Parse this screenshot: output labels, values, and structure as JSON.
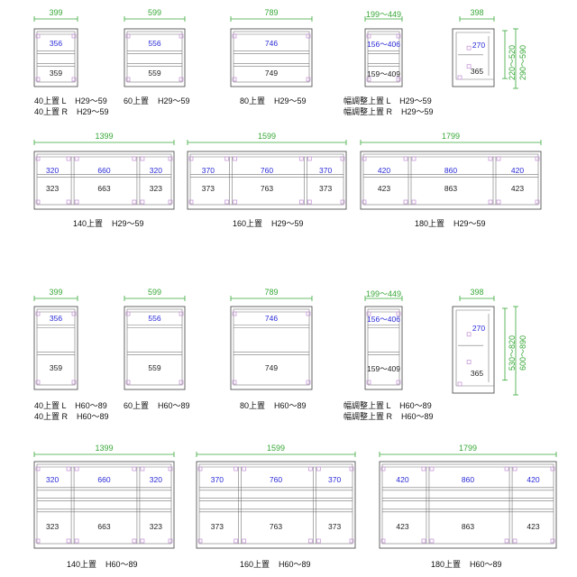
{
  "rows": [
    {
      "row_id": "upper-h29",
      "units": [
        {
          "width": "399",
          "top_value": "356",
          "bottom_value": "359",
          "caption_lines": [
            "40上置 L    H29〜59",
            "40上置 R    H29〜59"
          ]
        },
        {
          "width": "599",
          "top_value": "556",
          "bottom_value": "559",
          "caption_lines": [
            "60上置    H29〜59"
          ]
        },
        {
          "width": "789",
          "top_value": "746",
          "bottom_value": "749",
          "caption_lines": [
            "80上置    H29〜59"
          ]
        },
        {
          "width": "199〜449",
          "top_value": "156〜406",
          "bottom_value": "159〜409",
          "caption_lines": [
            "幅調整上置 L    H29〜59",
            "幅調整上置 R    H29〜59"
          ]
        },
        {
          "width": "398",
          "top_value": "270",
          "bottom_value": "365",
          "side_dims": [
            "220〜520",
            "290〜590"
          ],
          "caption_lines": []
        }
      ]
    },
    {
      "row_id": "wide-h29",
      "units": [
        {
          "width": "1399",
          "top_values": [
            "320",
            "660",
            "320"
          ],
          "bottom_values": [
            "323",
            "663",
            "323"
          ],
          "caption_lines": [
            "140上置    H29〜59"
          ]
        },
        {
          "width": "1599",
          "top_values": [
            "370",
            "760",
            "370"
          ],
          "bottom_values": [
            "373",
            "763",
            "373"
          ],
          "caption_lines": [
            "160上置    H29〜59"
          ]
        },
        {
          "width": "1799",
          "top_values": [
            "420",
            "860",
            "420"
          ],
          "bottom_values": [
            "423",
            "863",
            "423"
          ],
          "caption_lines": [
            "180上置    H29〜59"
          ]
        }
      ]
    },
    {
      "row_id": "upper-h60",
      "units": [
        {
          "width": "399",
          "top_value": "356",
          "bottom_value": "359",
          "caption_lines": [
            "40上置 L    H60〜89",
            "40上置 R    H60〜89"
          ]
        },
        {
          "width": "599",
          "top_value": "556",
          "bottom_value": "559",
          "caption_lines": [
            "60上置    H60〜89"
          ]
        },
        {
          "width": "789",
          "top_value": "746",
          "bottom_value": "749",
          "caption_lines": [
            "80上置    H60〜89"
          ]
        },
        {
          "width": "199〜449",
          "top_value": "156〜406",
          "bottom_value": "159〜409",
          "caption_lines": [
            "幅調整上置 L    H60〜89",
            "幅調整上置 R    H60〜89"
          ]
        },
        {
          "width": "398",
          "top_value": "270",
          "bottom_value": "365",
          "side_dims": [
            "530〜820",
            "600〜890"
          ],
          "caption_lines": []
        }
      ]
    },
    {
      "row_id": "wide-h60",
      "units": [
        {
          "width": "1399",
          "top_values": [
            "320",
            "660",
            "320"
          ],
          "bottom_values": [
            "323",
            "663",
            "323"
          ],
          "caption_lines": [
            "140上置    H60〜89"
          ]
        },
        {
          "width": "1599",
          "top_values": [
            "370",
            "760",
            "370"
          ],
          "bottom_values": [
            "373",
            "763",
            "373"
          ],
          "caption_lines": [
            "160上置    H60〜89"
          ]
        },
        {
          "width": "1799",
          "top_values": [
            "420",
            "860",
            "420"
          ],
          "bottom_values": [
            "423",
            "863",
            "423"
          ],
          "caption_lines": [
            "180上置    H60〜89"
          ]
        }
      ]
    }
  ],
  "colors": {
    "dimension": "#38a838",
    "inner_value": "#2a2ad8",
    "frame": "#555555",
    "hinge": "#c89ad8"
  }
}
